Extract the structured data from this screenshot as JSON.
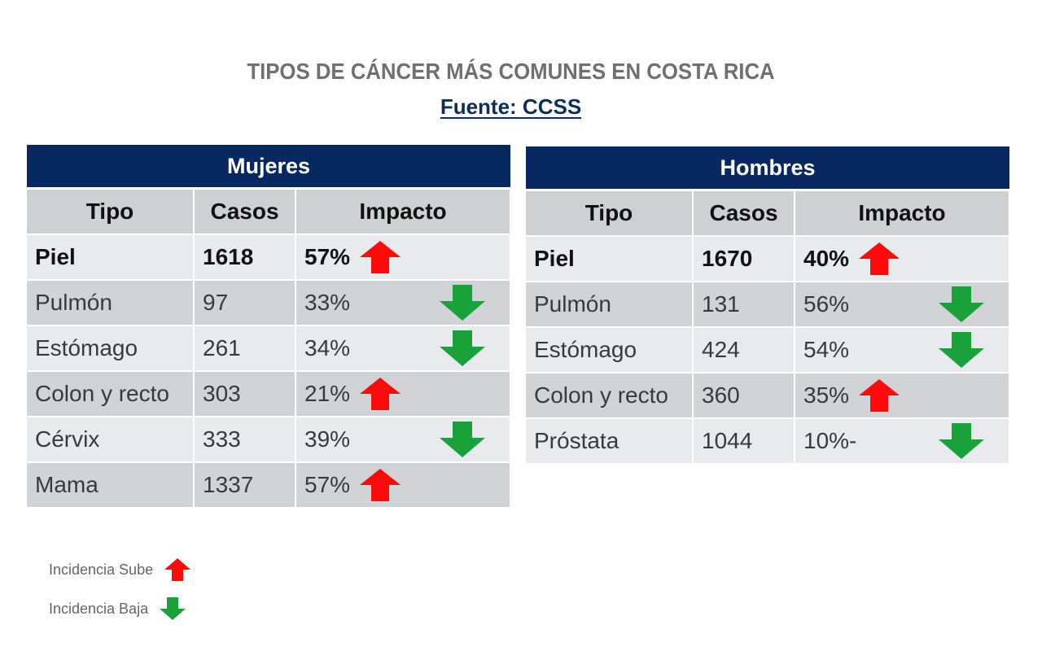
{
  "title": "TIPOS DE CÁNCER MÁS COMUNES EN COSTA RICA",
  "source": "Fuente: CCSS",
  "colors": {
    "header_bg": "#082862",
    "up_arrow": "#ff0a0a",
    "down_arrow": "#19a23a"
  },
  "columns": [
    "Tipo",
    "Casos",
    "Impacto"
  ],
  "women": {
    "heading": "Mujeres",
    "rows": [
      {
        "tipo": "Piel",
        "casos": "1618",
        "impacto": "57%",
        "trend": "up"
      },
      {
        "tipo": "Pulmón",
        "casos": "97",
        "impacto": "33%",
        "trend": "down"
      },
      {
        "tipo": "Estómago",
        "casos": "261",
        "impacto": "34%",
        "trend": "down"
      },
      {
        "tipo": "Colon y recto",
        "casos": "303",
        "impacto": "21%",
        "trend": "up"
      },
      {
        "tipo": "Cérvix",
        "casos": "333",
        "impacto": "39%",
        "trend": "down"
      },
      {
        "tipo": "Mama",
        "casos": "1337",
        "impacto": "57%",
        "trend": "up"
      }
    ]
  },
  "men": {
    "heading": "Hombres",
    "rows": [
      {
        "tipo": "Piel",
        "casos": "1670",
        "impacto": "40%",
        "trend": "up"
      },
      {
        "tipo": "Pulmón",
        "casos": "131",
        "impacto": "56%",
        "trend": "down"
      },
      {
        "tipo": "Estómago",
        "casos": "424",
        "impacto": "54%",
        "trend": "down"
      },
      {
        "tipo": "Colon y recto",
        "casos": "360",
        "impacto": "35%",
        "trend": "up"
      },
      {
        "tipo": "Próstata",
        "casos": "1044",
        "impacto": "10%-",
        "trend": "down"
      }
    ]
  },
  "legend": {
    "up_label": "Incidencia Sube",
    "down_label": "Incidencia Baja"
  }
}
